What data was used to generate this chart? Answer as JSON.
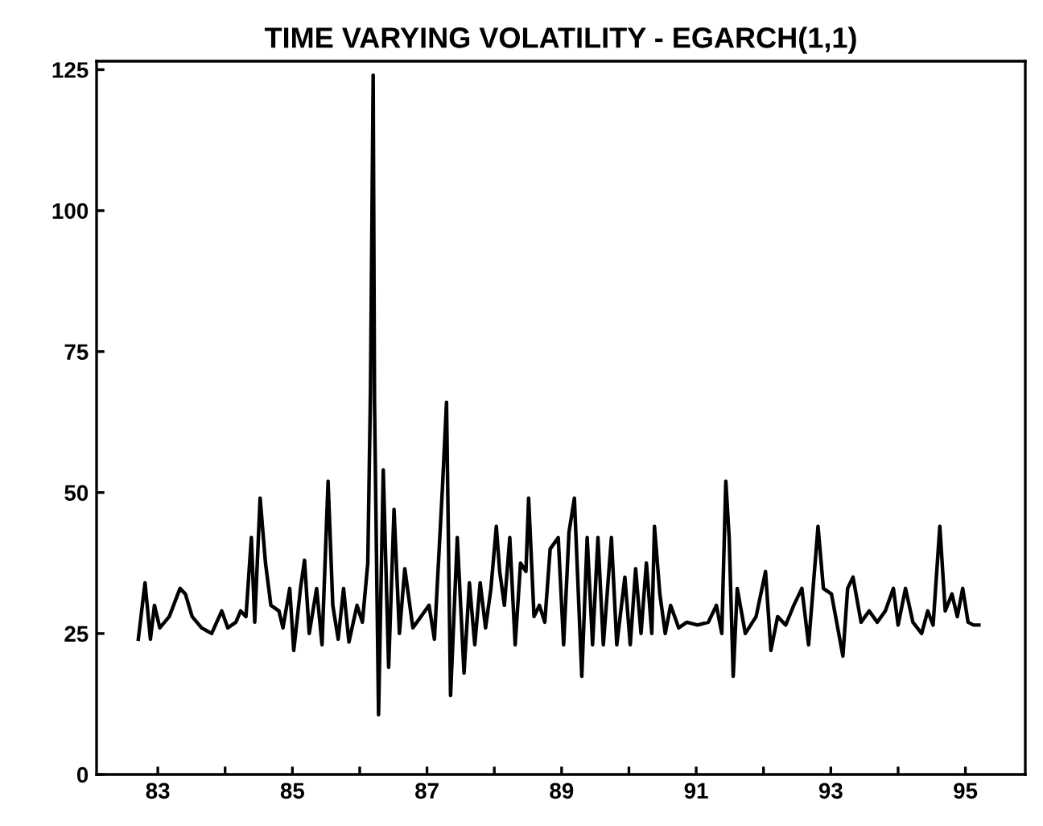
{
  "chart_data": {
    "type": "line",
    "title": "TIME VARYING VOLATILITY - EGARCH(1,1)",
    "x": [
      82.71,
      82.81,
      82.89,
      82.95,
      83.03,
      83.17,
      83.33,
      83.41,
      83.51,
      83.65,
      83.8,
      83.95,
      84.04,
      84.16,
      84.23,
      84.31,
      84.39,
      84.44,
      84.52,
      84.6,
      84.68,
      84.8,
      84.86,
      84.96,
      85.02,
      85.12,
      85.18,
      85.25,
      85.36,
      85.44,
      85.53,
      85.6,
      85.68,
      85.76,
      85.84,
      85.96,
      86.04,
      86.12,
      86.16,
      86.2,
      86.22,
      86.28,
      86.35,
      86.43,
      86.51,
      86.59,
      86.67,
      86.79,
      87.03,
      87.11,
      87.23,
      87.29,
      87.35,
      87.45,
      87.55,
      87.63,
      87.71,
      87.79,
      87.87,
      87.95,
      88.03,
      88.08,
      88.15,
      88.23,
      88.31,
      88.39,
      88.47,
      88.51,
      88.59,
      88.67,
      88.75,
      88.83,
      88.95,
      89.03,
      89.11,
      89.19,
      89.3,
      89.38,
      89.46,
      89.54,
      89.62,
      89.74,
      89.82,
      89.94,
      90.02,
      90.1,
      90.18,
      90.26,
      90.34,
      90.38,
      90.46,
      90.54,
      90.62,
      90.74,
      90.86,
      91.02,
      91.18,
      91.3,
      91.38,
      91.44,
      91.49,
      91.55,
      91.61,
      91.73,
      91.89,
      92.03,
      92.11,
      92.21,
      92.33,
      92.45,
      92.57,
      92.67,
      92.73,
      92.81,
      92.89,
      93.01,
      93.18,
      93.25,
      93.33,
      93.45,
      93.57,
      93.69,
      93.81,
      93.93,
      94.0,
      94.11,
      94.22,
      94.35,
      94.44,
      94.52,
      94.62,
      94.7,
      94.8,
      94.88,
      94.96,
      95.04,
      95.12,
      95.2
    ],
    "series": [
      {
        "color": "#000000",
        "values": [
          24,
          34,
          24,
          30,
          26,
          28,
          33,
          32,
          28,
          26,
          25,
          29,
          26,
          27,
          29,
          28,
          42,
          27,
          49,
          37.5,
          30,
          29,
          26,
          33,
          22,
          33,
          38,
          25,
          33,
          23,
          52,
          30,
          24,
          33,
          23.5,
          30,
          27,
          37.5,
          68,
          124,
          66,
          10.6,
          54,
          19,
          47,
          25,
          36.5,
          26,
          30,
          24,
          51,
          66,
          14,
          42,
          18,
          34,
          23,
          34,
          26,
          33,
          44,
          36,
          30,
          42,
          23,
          37.5,
          36,
          49,
          28,
          30,
          27,
          40,
          42,
          23,
          43,
          49,
          17.4,
          42,
          23,
          42,
          23,
          42,
          23,
          35,
          23,
          36.5,
          25,
          37.5,
          25,
          44,
          32,
          25,
          30,
          26,
          27,
          26.5,
          27,
          30,
          25,
          52,
          42,
          17.4,
          33,
          25,
          28,
          36,
          22,
          28,
          26.5,
          30,
          33,
          23,
          32,
          44,
          33,
          32,
          21,
          33,
          35,
          27,
          29,
          27,
          29,
          33,
          26.5,
          33,
          27,
          25,
          29,
          26.5,
          44,
          29,
          32,
          28,
          33,
          27,
          26.5,
          26.5
        ]
      }
    ],
    "xlim": [
      82.09,
      95.89
    ],
    "ylim": [
      0,
      126.5
    ],
    "xticks": [
      83,
      {
        "value": 84,
        "label": null
      },
      85,
      {
        "value": 86,
        "label": null
      },
      87,
      {
        "value": 88,
        "label": null
      },
      89,
      {
        "value": 90,
        "label": null
      },
      91,
      {
        "value": 92,
        "label": null
      },
      93,
      {
        "value": 94,
        "label": null
      },
      95
    ],
    "yticks": [
      0,
      25,
      50,
      75,
      100,
      125
    ],
    "grid": false,
    "line_style": "solid"
  }
}
